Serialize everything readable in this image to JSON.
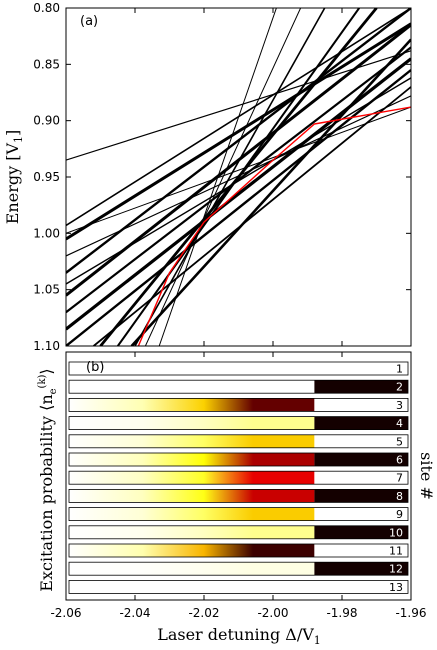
{
  "chart_data": [
    {
      "type": "line",
      "panel_label": "(a)",
      "ylabel": "Energy [V",
      "ylabel_sub": "1",
      "ylabel_close": "]",
      "xlim": [
        -2.06,
        -1.96
      ],
      "ylim": [
        1.1,
        0.8
      ],
      "y_inverted": true,
      "yticks": [
        "0.80",
        "0.85",
        "0.90",
        "0.95",
        "1.00",
        "1.05",
        "1.10"
      ],
      "crossing_point": {
        "x": -2.02,
        "y": 0.953
      },
      "series": [
        {
          "values": [
            [
              -2.06,
              0.935
            ],
            [
              -1.96,
              0.838
            ]
          ],
          "color": "#000000",
          "width": 1.2
        },
        {
          "values": [
            [
              -2.06,
              0.993
            ],
            [
              -1.96,
              0.8
            ]
          ],
          "color": "#000000",
          "width": 1.6
        },
        {
          "values": [
            [
              -2.06,
              1.005
            ],
            [
              -1.96,
              0.814
            ]
          ],
          "color": "#000000",
          "width": 3.0
        },
        {
          "values": [
            [
              -2.06,
              1.035
            ],
            [
              -1.96,
              0.8
            ]
          ],
          "color": "#000000",
          "width": 2.4
        },
        {
          "values": [
            [
              -2.06,
              1.055
            ],
            [
              -1.96,
              0.815
            ]
          ],
          "color": "#000000",
          "width": 3.0
        },
        {
          "values": [
            [
              -2.06,
              1.07
            ],
            [
              -1.96,
              0.835
            ]
          ],
          "color": "#000000",
          "width": 2.2
        },
        {
          "values": [
            [
              -2.06,
              1.085
            ],
            [
              -1.96,
              0.845
            ]
          ],
          "color": "#000000",
          "width": 3.2
        },
        {
          "values": [
            [
              -2.06,
              1.1
            ],
            [
              -1.96,
              0.855
            ]
          ],
          "color": "#000000",
          "width": 2.4
        },
        {
          "values": [
            [
              -2.05,
              1.1
            ],
            [
              -1.97,
              0.8
            ]
          ],
          "color": "#000000",
          "width": 2.8
        },
        {
          "values": [
            [
              -2.045,
              1.1
            ],
            [
              -1.975,
              0.8
            ]
          ],
          "color": "#000000",
          "width": 2.0
        },
        {
          "values": [
            [
              -2.04,
              1.1
            ],
            [
              -1.985,
              0.8
            ]
          ],
          "color": "#000000",
          "width": 1.6
        },
        {
          "values": [
            [
              -2.037,
              1.1
            ],
            [
              -1.992,
              0.8
            ]
          ],
          "color": "#000000",
          "width": 1.0
        },
        {
          "values": [
            [
              -2.033,
              1.1
            ],
            [
              -1.999,
              0.8
            ]
          ],
          "color": "#000000",
          "width": 1.0
        },
        {
          "values": [
            [
              -2.041,
              1.1
            ],
            [
              -1.96,
              0.828
            ]
          ],
          "color": "#000000",
          "width": 2.6
        },
        {
          "values": [
            [
              -2.052,
              1.1
            ],
            [
              -1.96,
              0.87
            ]
          ],
          "color": "#000000",
          "width": 1.8
        },
        {
          "values": [
            [
              -2.06,
              1.045
            ],
            [
              -1.96,
              0.862
            ]
          ],
          "color": "#000000",
          "width": 1.4
        },
        {
          "values": [
            [
              -2.06,
              1.02
            ],
            [
              -1.96,
              0.878
            ]
          ],
          "color": "#000000",
          "width": 1.2
        },
        {
          "values": [
            [
              -2.06,
              1.0
            ],
            [
              -1.96,
              0.888
            ]
          ],
          "color": "#000000",
          "width": 1.0
        },
        {
          "values": [
            [
              -2.039,
              1.1
            ],
            [
              -2.03,
              1.035
            ],
            [
              -2.02,
              0.99
            ],
            [
              -2.0,
              0.935
            ],
            [
              -1.988,
              0.903
            ],
            [
              -1.96,
              0.888
            ]
          ],
          "color": "#ff0000",
          "width": 1.4
        }
      ]
    },
    {
      "type": "heatmap",
      "panel_label": "(b)",
      "xlabel": "Laser detuning Δ/V",
      "xlabel_sub": "1",
      "ylabel": "Excitation probability",
      "ylabel_math": "⟨n",
      "ylabel_math_sub": "e",
      "ylabel_math_sup": "(k)",
      "ylabel_math_close": "⟩",
      "right_label": "site #",
      "xlim": [
        -2.06,
        -1.96
      ],
      "xticks": [
        "-2.06",
        "-2.04",
        "-2.02",
        "-2.00",
        "-1.98",
        "-1.96"
      ],
      "switch_detuning": -1.988,
      "sites": [
        {
          "site": "1",
          "before": 0.0,
          "peak": 0.0,
          "after": 0.0
        },
        {
          "site": "2",
          "before": 0.0,
          "peak": 0.0,
          "after": 1.0
        },
        {
          "site": "3",
          "before": 0.0,
          "peak": 0.9,
          "after": 0.0
        },
        {
          "site": "4",
          "before": 0.0,
          "peak": 0.2,
          "after": 1.0
        },
        {
          "site": "5",
          "before": 0.0,
          "peak": 0.5,
          "after": 0.0
        },
        {
          "site": "6",
          "before": 0.0,
          "peak": 0.8,
          "after": 1.0
        },
        {
          "site": "7",
          "before": 0.0,
          "peak": 0.7,
          "after": 0.0
        },
        {
          "site": "8",
          "before": 0.0,
          "peak": 0.75,
          "after": 1.0
        },
        {
          "site": "9",
          "before": 0.0,
          "peak": 0.5,
          "after": 0.0
        },
        {
          "site": "10",
          "before": 0.0,
          "peak": 0.2,
          "after": 1.0
        },
        {
          "site": "11",
          "before": 0.0,
          "peak": 0.95,
          "after": 0.0
        },
        {
          "site": "12",
          "before": 0.0,
          "peak": 0.05,
          "after": 1.0
        },
        {
          "site": "13",
          "before": 0.0,
          "peak": 0.0,
          "after": 0.0
        }
      ]
    }
  ]
}
